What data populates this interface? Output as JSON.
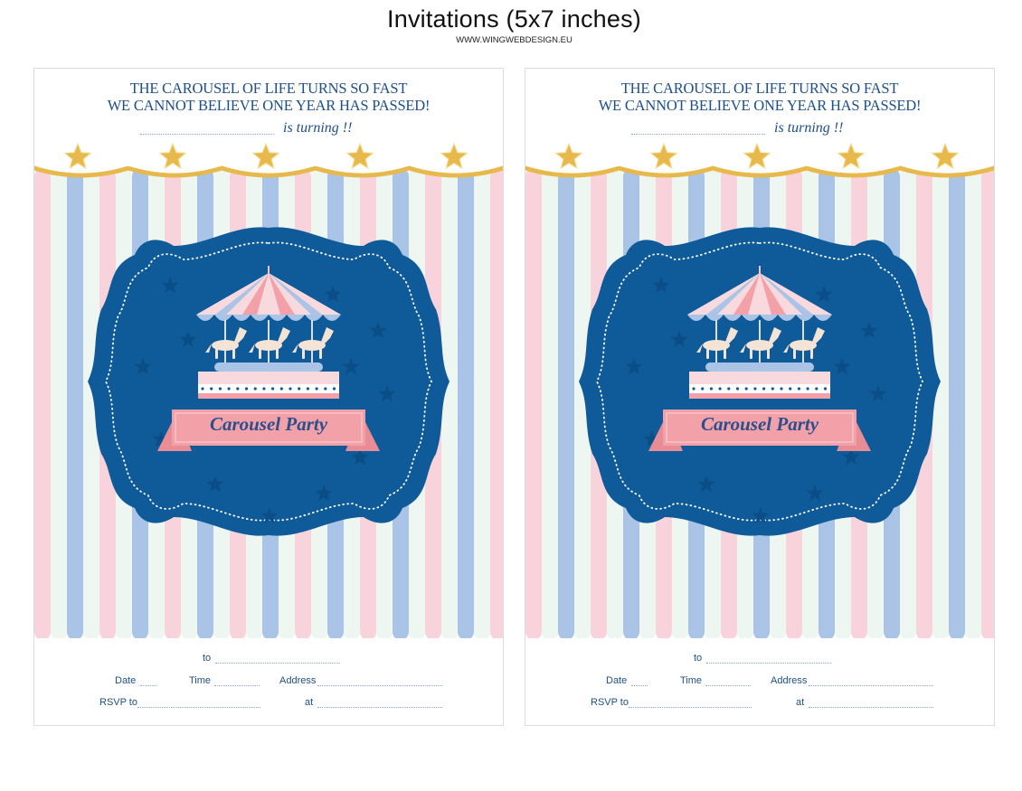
{
  "page": {
    "title": "Invitations (5x7 inches)",
    "website": "WWW.WINGWEBDESIGN.EU"
  },
  "invitation": {
    "tagline_line1": "THE CAROUSEL OF LIFE TURNS SO FAST",
    "tagline_line2": "WE CANNOT BELIEVE ONE YEAR HAS PASSED!",
    "turning_text": "is turning !!",
    "banner_text": "Carousel Party",
    "fields": {
      "to": "to",
      "date": "Date",
      "time": "Time",
      "address": "Address",
      "rsvp": "RSVP to",
      "at": "at"
    }
  },
  "colors": {
    "navy": "#0f5a98",
    "stripe_pink": "#f8d3db",
    "stripe_blue": "#a9c4e6",
    "stripe_mint": "#eef6f2",
    "gold": "#e7b94d",
    "ribbon_pink": "#f3a1a8",
    "text_blue": "#1d4f8b"
  },
  "cards": [
    {
      "id": "left"
    },
    {
      "id": "right"
    }
  ]
}
